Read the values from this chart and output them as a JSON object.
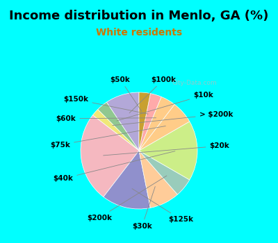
{
  "title": "Income distribution in Menlo, GA (%)",
  "subtitle": "White residents",
  "bg_color": "#00ffff",
  "chart_bg_color": "#dff2e8",
  "labels": [
    "$100k",
    "$10k",
    "> $200k",
    "$20k",
    "$125k",
    "$30k",
    "$200k",
    "$40k",
    "$75k",
    "$60k",
    "$150k",
    "$50k"
  ],
  "values": [
    9,
    3,
    2,
    24,
    13,
    8,
    5,
    16,
    6,
    4,
    3,
    3
  ],
  "colors": [
    "#b3a8d8",
    "#90c890",
    "#f0e878",
    "#f5b8c0",
    "#9090cc",
    "#ffcc99",
    "#99ccbb",
    "#ccee88",
    "#ffcc88",
    "#ffcc88",
    "#ffaaaa",
    "#c8a030"
  ],
  "startangle": 90,
  "title_fontsize": 13,
  "subtitle_fontsize": 10,
  "label_fontsize": 7.5,
  "subtitle_color": "#cc7700"
}
